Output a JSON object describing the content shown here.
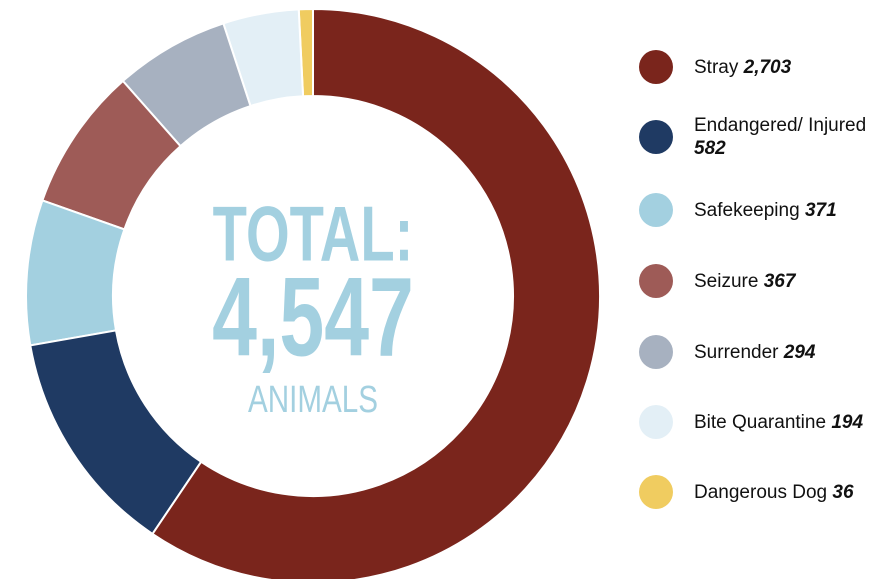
{
  "chart_data": {
    "type": "donut",
    "center_text": [
      "TOTAL:",
      "4,547",
      "ANIMALS"
    ],
    "categories": [
      "Stray",
      "Endangered/ Injured",
      "Safekeeping",
      "Seizure",
      "Surrender",
      "Bite Quarantine",
      "Dangerous Dog"
    ],
    "values": [
      2703,
      582,
      371,
      367,
      294,
      194,
      36
    ],
    "value_labels": [
      "2,703",
      "582",
      "371",
      "367",
      "294",
      "194",
      "36"
    ],
    "colors": [
      "#7a251c",
      "#1f3a63",
      "#a3d0e0",
      "#9e5b57",
      "#a7b1c0",
      "#e3eff6",
      "#f0cc60"
    ]
  }
}
